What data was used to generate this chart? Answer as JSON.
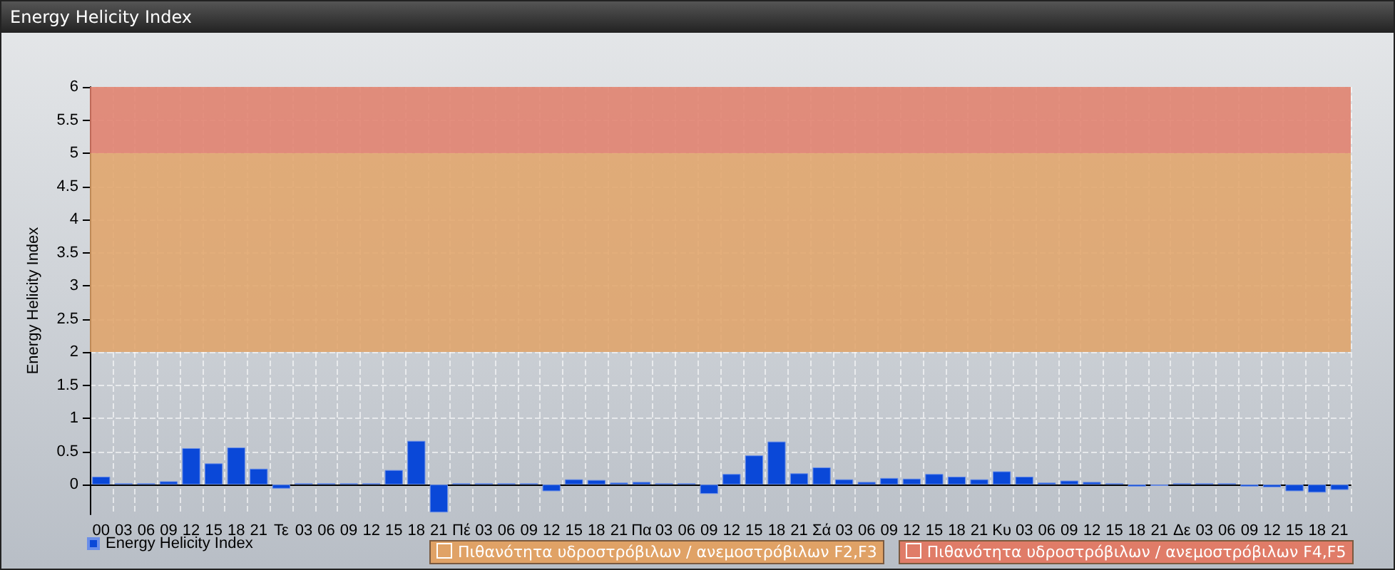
{
  "chart_data": {
    "type": "bar",
    "title": "Energy Helicity Index",
    "ylabel": "Energy Helicity Index",
    "categories": [
      "00",
      "03",
      "06",
      "09",
      "12",
      "15",
      "18",
      "21",
      "Τε",
      "03",
      "06",
      "09",
      "12",
      "15",
      "18",
      "21",
      "Πέ",
      "03",
      "06",
      "09",
      "12",
      "15",
      "18",
      "21",
      "Πα",
      "03",
      "06",
      "09",
      "12",
      "15",
      "18",
      "21",
      "Σά",
      "03",
      "06",
      "09",
      "12",
      "15",
      "18",
      "21",
      "Κυ",
      "03",
      "06",
      "09",
      "12",
      "15",
      "18",
      "21",
      "Δε",
      "03",
      "06",
      "09",
      "12",
      "15",
      "18",
      "21"
    ],
    "series": [
      {
        "name": "Energy Helicity Index",
        "color": "#0a48d8",
        "values": [
          0.12,
          0.02,
          0.02,
          0.05,
          0.55,
          0.32,
          0.56,
          0.24,
          -0.06,
          0.02,
          0.02,
          0.02,
          0.02,
          0.22,
          0.66,
          -0.42,
          0.02,
          0.02,
          0.02,
          0.02,
          -0.1,
          0.08,
          0.07,
          0.03,
          0.04,
          0.02,
          0.02,
          -0.14,
          0.16,
          0.44,
          0.65,
          0.17,
          0.26,
          0.08,
          0.04,
          0.1,
          0.09,
          0.16,
          0.12,
          0.08,
          0.2,
          0.12,
          0.03,
          0.06,
          0.04,
          0.02,
          -0.03,
          -0.02,
          0.02,
          0.02,
          0.02,
          -0.03,
          -0.04,
          -0.1,
          -0.12,
          -0.08
        ]
      }
    ],
    "ylim": [
      -0.45,
      6
    ],
    "yticks": [
      0,
      0.5,
      1,
      1.5,
      2,
      2.5,
      3,
      3.5,
      4,
      4.5,
      5,
      5.5,
      6
    ],
    "bands": [
      {
        "axis": "y",
        "from": 2,
        "to": 5,
        "label": "Πιθανότητα υδροστρόβιλων / ανεμοστρόβιλων F2,F3",
        "color": "#e0a266"
      },
      {
        "axis": "y",
        "from": 5,
        "to": 6,
        "label": "Πιθανότητα υδροστρόβιλων / ανεμοστρόβιλων F4,F5",
        "color": "#e07c68"
      }
    ],
    "grid": true,
    "legend": "bottom left"
  }
}
